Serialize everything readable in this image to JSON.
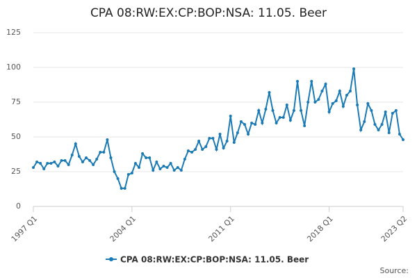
{
  "chart_data": {
    "type": "line",
    "title": "CPA 08:RW:EX:CP:BOP:NSA: 11.05. Beer",
    "source": "Source:",
    "categories": [
      "1997 Q1",
      null,
      null,
      null,
      null,
      null,
      null,
      null,
      null,
      null,
      null,
      null,
      null,
      null,
      null,
      null,
      null,
      null,
      null,
      null,
      null,
      null,
      null,
      null,
      null,
      null,
      null,
      null,
      "2004 Q1",
      null,
      null,
      null,
      null,
      null,
      null,
      null,
      null,
      null,
      null,
      null,
      null,
      null,
      null,
      null,
      null,
      null,
      null,
      null,
      null,
      null,
      null,
      null,
      null,
      null,
      null,
      null,
      "2011 Q1",
      null,
      null,
      null,
      null,
      null,
      null,
      null,
      null,
      null,
      null,
      null,
      null,
      null,
      null,
      null,
      null,
      null,
      null,
      null,
      null,
      null,
      null,
      null,
      null,
      null,
      null,
      null,
      "2018 Q1",
      null,
      null,
      null,
      null,
      null,
      null,
      null,
      null,
      null,
      null,
      null,
      null,
      null,
      null,
      null,
      null,
      null,
      null,
      null,
      null,
      "2023 Q2"
    ],
    "series": [
      {
        "name": "CPA 08:RW:EX:CP:BOP:NSA: 11.05. Beer",
        "color": "#1a7ab5",
        "values": [
          28,
          32,
          31,
          27,
          31,
          31,
          32,
          29,
          33,
          33,
          30,
          37,
          45,
          36,
          32,
          35,
          33,
          30,
          34,
          39,
          39,
          48,
          35,
          25,
          20,
          13,
          13,
          23,
          24,
          31,
          28,
          38,
          35,
          35,
          26,
          32,
          27,
          29,
          28,
          31,
          26,
          28,
          26,
          34,
          40,
          39,
          41,
          47,
          41,
          43,
          49,
          49,
          41,
          52,
          42,
          47,
          65,
          46,
          53,
          61,
          59,
          52,
          60,
          59,
          69,
          60,
          70,
          82,
          69,
          60,
          64,
          64,
          73,
          62,
          69,
          90,
          69,
          58,
          75,
          90,
          75,
          77,
          83,
          88,
          68,
          74,
          76,
          83,
          72,
          80,
          83,
          99,
          73,
          55,
          61,
          74,
          69,
          59,
          55,
          59,
          68,
          53,
          67,
          69,
          52,
          48
        ]
      }
    ],
    "ylim": [
      0,
      125
    ],
    "yticks": [
      0,
      25,
      50,
      75,
      100,
      125
    ],
    "grid": true
  }
}
